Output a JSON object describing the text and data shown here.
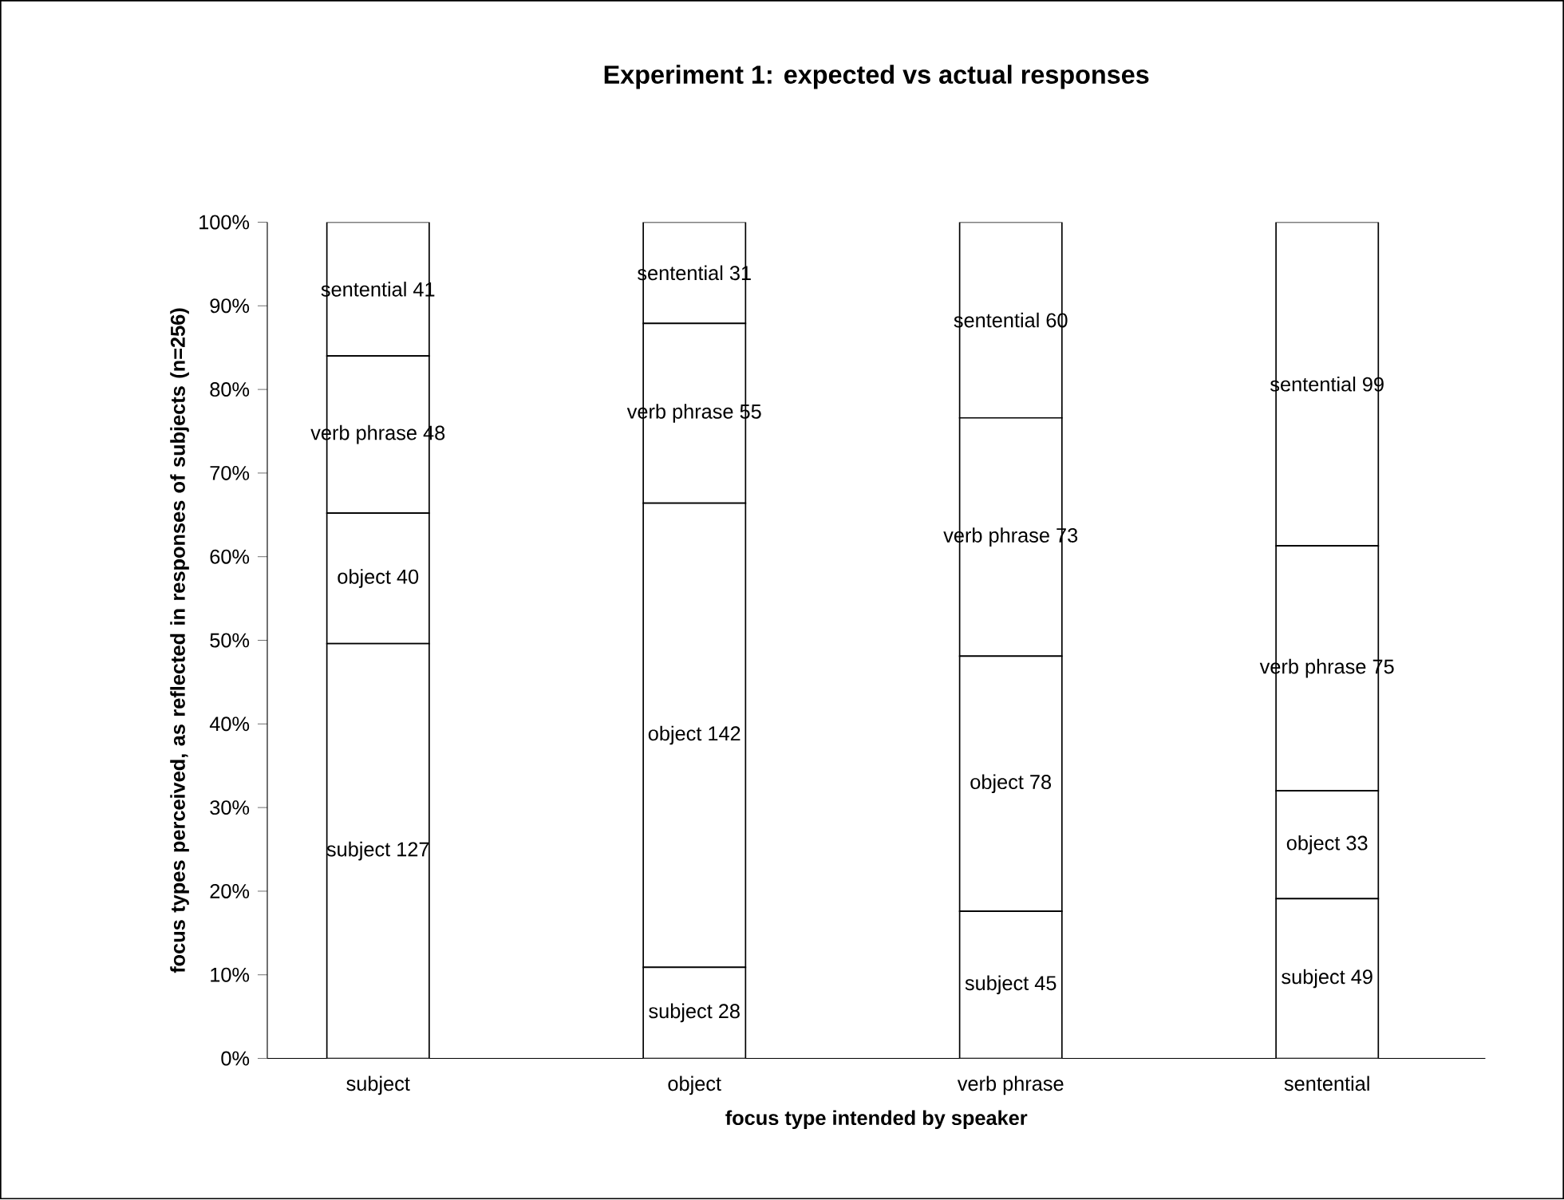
{
  "chart_data": {
    "type": "bar",
    "title": "Experiment 1: expected vs actual responses",
    "xlabel": "focus type intended by speaker",
    "ylabel": "focus types perceived, as reflected in responses of subjects (n=256)",
    "categories": [
      "subject",
      "object",
      "verb phrase",
      "sentential"
    ],
    "stacked": true,
    "ylim": [
      0,
      100
    ],
    "yticks": [
      {
        "value": 0,
        "label": "0%"
      },
      {
        "value": 10,
        "label": "10%"
      },
      {
        "value": 20,
        "label": "20%"
      },
      {
        "value": 30,
        "label": "30%"
      },
      {
        "value": 40,
        "label": "40%"
      },
      {
        "value": 50,
        "label": "50%"
      },
      {
        "value": 60,
        "label": "60%"
      },
      {
        "value": 70,
        "label": "70%"
      },
      {
        "value": 80,
        "label": "80%"
      },
      {
        "value": 90,
        "label": "90%"
      },
      {
        "value": 100,
        "label": "100%"
      }
    ],
    "series": [
      {
        "color": "#ffffff",
        "values": [
          49.6,
          10.9,
          17.6,
          19.1
        ],
        "value_labels": [
          "subject 127",
          "subject 28",
          "subject 45",
          "subject 49"
        ]
      },
      {
        "color": "#ffffff",
        "values": [
          15.6,
          55.5,
          30.5,
          12.9
        ],
        "value_labels": [
          "object 40",
          "object 142",
          "object 78",
          "object 33"
        ]
      },
      {
        "color": "#ffffff",
        "values": [
          18.8,
          21.5,
          28.5,
          29.3
        ],
        "value_labels": [
          "verb phrase 48",
          "verb phrase 55",
          "verb phrase 73",
          "verb phrase 75"
        ]
      },
      {
        "color": "#ffffff",
        "values": [
          16.0,
          12.1,
          23.4,
          38.7
        ],
        "value_labels": [
          "sentential 41",
          "sentential 31",
          "sentential 60",
          "sentential 99"
        ]
      }
    ],
    "grid": false
  }
}
